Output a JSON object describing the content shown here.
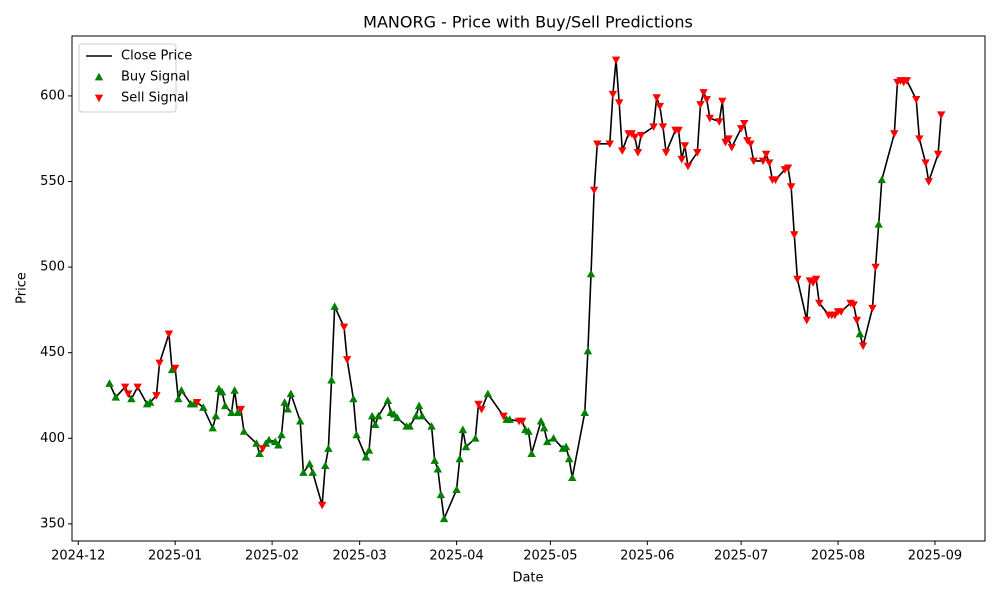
{
  "chart_data": {
    "type": "line",
    "title": "MANORG - Price with Buy/Sell Predictions",
    "x_label": "Date",
    "y_label": "Price",
    "xlim": [
      -2,
      290
    ],
    "ylim": [
      340,
      635
    ],
    "xticks": [
      {
        "value": 0,
        "label": "2024-12"
      },
      {
        "value": 31,
        "label": "2025-01"
      },
      {
        "value": 62,
        "label": "2025-02"
      },
      {
        "value": 90,
        "label": "2025-03"
      },
      {
        "value": 121,
        "label": "2025-04"
      },
      {
        "value": 151,
        "label": "2025-05"
      },
      {
        "value": 182,
        "label": "2025-06"
      },
      {
        "value": 212,
        "label": "2025-07"
      },
      {
        "value": 243,
        "label": "2025-08"
      },
      {
        "value": 274,
        "label": "2025-09"
      }
    ],
    "yticks": [
      350,
      400,
      450,
      500,
      550,
      600
    ],
    "legend": "upper left",
    "series": [
      {
        "name": "Close Price",
        "type": "line",
        "color": "black",
        "x": [
          10,
          12,
          15,
          16,
          17,
          19,
          22,
          23,
          25,
          26,
          29,
          30,
          31,
          32,
          33,
          36,
          37,
          38,
          40,
          43,
          44,
          45,
          46,
          47,
          49,
          50,
          51,
          52,
          53,
          57,
          58,
          59,
          60,
          61,
          63,
          64,
          65,
          66,
          67,
          68,
          71,
          72,
          74,
          75,
          78,
          79,
          80,
          81,
          82,
          85,
          86,
          88,
          89,
          92,
          93,
          94,
          95,
          96,
          99,
          100,
          101,
          102,
          105,
          106,
          108,
          109,
          110,
          113,
          114,
          115,
          116,
          117,
          121,
          122,
          123,
          124,
          127,
          128,
          129,
          131,
          136,
          137,
          138,
          141,
          142,
          143,
          144,
          145,
          148,
          149,
          150,
          152,
          155,
          156,
          157,
          158,
          162,
          163,
          164,
          165,
          166,
          170,
          171,
          172,
          173,
          174,
          176,
          177,
          178,
          179,
          180,
          184,
          185,
          186,
          187,
          188,
          191,
          192,
          193,
          194,
          195,
          198,
          199,
          200,
          201,
          202,
          205,
          206,
          207,
          208,
          209,
          212,
          213,
          214,
          215,
          216,
          219,
          220,
          221,
          222,
          223,
          226,
          227,
          228,
          229,
          230,
          233,
          234,
          235,
          236,
          237,
          240,
          241,
          242,
          243,
          244,
          247,
          248,
          249,
          250,
          251,
          254,
          255,
          256,
          257,
          261,
          262,
          263,
          264,
          265,
          268,
          269,
          271,
          272,
          275,
          276
        ],
        "values": [
          432,
          424,
          430,
          426,
          423,
          430,
          420,
          421,
          425,
          444,
          461,
          440,
          441,
          423,
          428,
          420,
          420,
          421,
          418,
          406,
          413,
          429,
          427,
          419,
          415,
          428,
          415,
          417,
          404,
          397,
          391,
          394,
          397,
          399,
          398,
          396,
          402,
          421,
          417,
          426,
          410,
          380,
          385,
          380,
          361,
          384,
          394,
          434,
          477,
          465,
          446,
          423,
          402,
          389,
          393,
          413,
          408,
          413,
          422,
          415,
          414,
          412,
          407,
          407,
          413,
          419,
          413,
          407,
          387,
          382,
          367,
          353,
          370,
          388,
          405,
          395,
          400,
          420,
          417,
          426,
          413,
          411,
          411,
          410,
          410,
          405,
          404,
          391,
          410,
          406,
          398,
          400,
          394,
          395,
          388,
          377,
          415,
          451,
          496,
          545,
          572,
          572,
          601,
          621,
          596,
          568,
          578,
          578,
          576,
          567,
          577,
          582,
          599,
          594,
          582,
          567,
          580,
          580,
          563,
          571,
          559,
          567,
          595,
          602,
          598,
          587,
          585,
          597,
          573,
          575,
          570,
          581,
          584,
          574,
          572,
          562,
          562,
          566,
          561,
          551,
          551,
          557,
          558,
          547,
          519,
          493,
          469,
          492,
          491,
          493,
          479,
          472,
          472,
          472,
          474,
          474,
          479,
          478,
          469,
          461,
          454,
          476,
          500,
          525,
          551,
          578,
          608,
          609,
          608,
          609,
          598,
          575,
          561,
          550,
          566,
          589
        ]
      },
      {
        "name": "Buy Signal",
        "type": "scatter",
        "marker": "triangle-up",
        "color": "green",
        "x": [
          10,
          12,
          17,
          22,
          23,
          30,
          32,
          33,
          36,
          37,
          40,
          43,
          44,
          45,
          46,
          47,
          49,
          50,
          51,
          53,
          57,
          58,
          60,
          61,
          63,
          64,
          65,
          66,
          67,
          68,
          71,
          72,
          74,
          75,
          79,
          80,
          81,
          82,
          88,
          89,
          92,
          93,
          94,
          95,
          96,
          99,
          100,
          101,
          102,
          105,
          106,
          108,
          109,
          110,
          113,
          114,
          115,
          116,
          117,
          121,
          122,
          123,
          124,
          127,
          131,
          137,
          138,
          143,
          144,
          145,
          148,
          149,
          150,
          152,
          155,
          156,
          157,
          158,
          162,
          163,
          164,
          250,
          256,
          257
        ],
        "values": [
          432,
          424,
          423,
          420,
          421,
          440,
          423,
          428,
          420,
          420,
          418,
          406,
          413,
          429,
          427,
          419,
          415,
          428,
          415,
          404,
          397,
          391,
          397,
          399,
          398,
          396,
          402,
          421,
          417,
          426,
          410,
          380,
          385,
          380,
          384,
          394,
          434,
          477,
          423,
          402,
          389,
          393,
          413,
          408,
          413,
          422,
          415,
          414,
          412,
          407,
          407,
          413,
          419,
          413,
          407,
          387,
          382,
          367,
          353,
          370,
          388,
          405,
          395,
          400,
          426,
          411,
          411,
          405,
          404,
          391,
          410,
          406,
          398,
          400,
          394,
          395,
          388,
          377,
          415,
          451,
          496,
          461,
          525,
          551
        ]
      },
      {
        "name": "Sell Signal",
        "type": "scatter",
        "marker": "triangle-down",
        "color": "red",
        "x": [
          15,
          16,
          19,
          25,
          26,
          29,
          31,
          38,
          52,
          59,
          78,
          85,
          86,
          128,
          129,
          136,
          141,
          142,
          165,
          166,
          170,
          171,
          172,
          173,
          174,
          176,
          177,
          178,
          179,
          180,
          184,
          185,
          186,
          187,
          188,
          191,
          192,
          193,
          194,
          195,
          198,
          199,
          200,
          201,
          202,
          205,
          206,
          207,
          208,
          209,
          212,
          213,
          214,
          215,
          216,
          219,
          220,
          221,
          222,
          223,
          226,
          227,
          228,
          229,
          230,
          233,
          234,
          235,
          236,
          237,
          240,
          241,
          242,
          243,
          244,
          247,
          248,
          249,
          251,
          254,
          255,
          261,
          262,
          263,
          264,
          265,
          268,
          269,
          271,
          272,
          275,
          276
        ],
        "values": [
          430,
          426,
          430,
          425,
          444,
          461,
          441,
          421,
          417,
          394,
          361,
          465,
          446,
          420,
          417,
          413,
          410,
          410,
          545,
          572,
          572,
          601,
          621,
          596,
          568,
          578,
          578,
          576,
          567,
          577,
          582,
          599,
          594,
          582,
          567,
          580,
          580,
          563,
          571,
          559,
          567,
          595,
          602,
          598,
          587,
          585,
          597,
          573,
          575,
          570,
          581,
          584,
          574,
          572,
          562,
          562,
          566,
          561,
          551,
          551,
          557,
          558,
          547,
          519,
          493,
          469,
          492,
          491,
          493,
          479,
          472,
          472,
          472,
          474,
          474,
          479,
          478,
          469,
          454,
          476,
          500,
          578,
          608,
          609,
          608,
          609,
          598,
          575,
          561,
          550,
          566,
          589
        ]
      }
    ]
  }
}
